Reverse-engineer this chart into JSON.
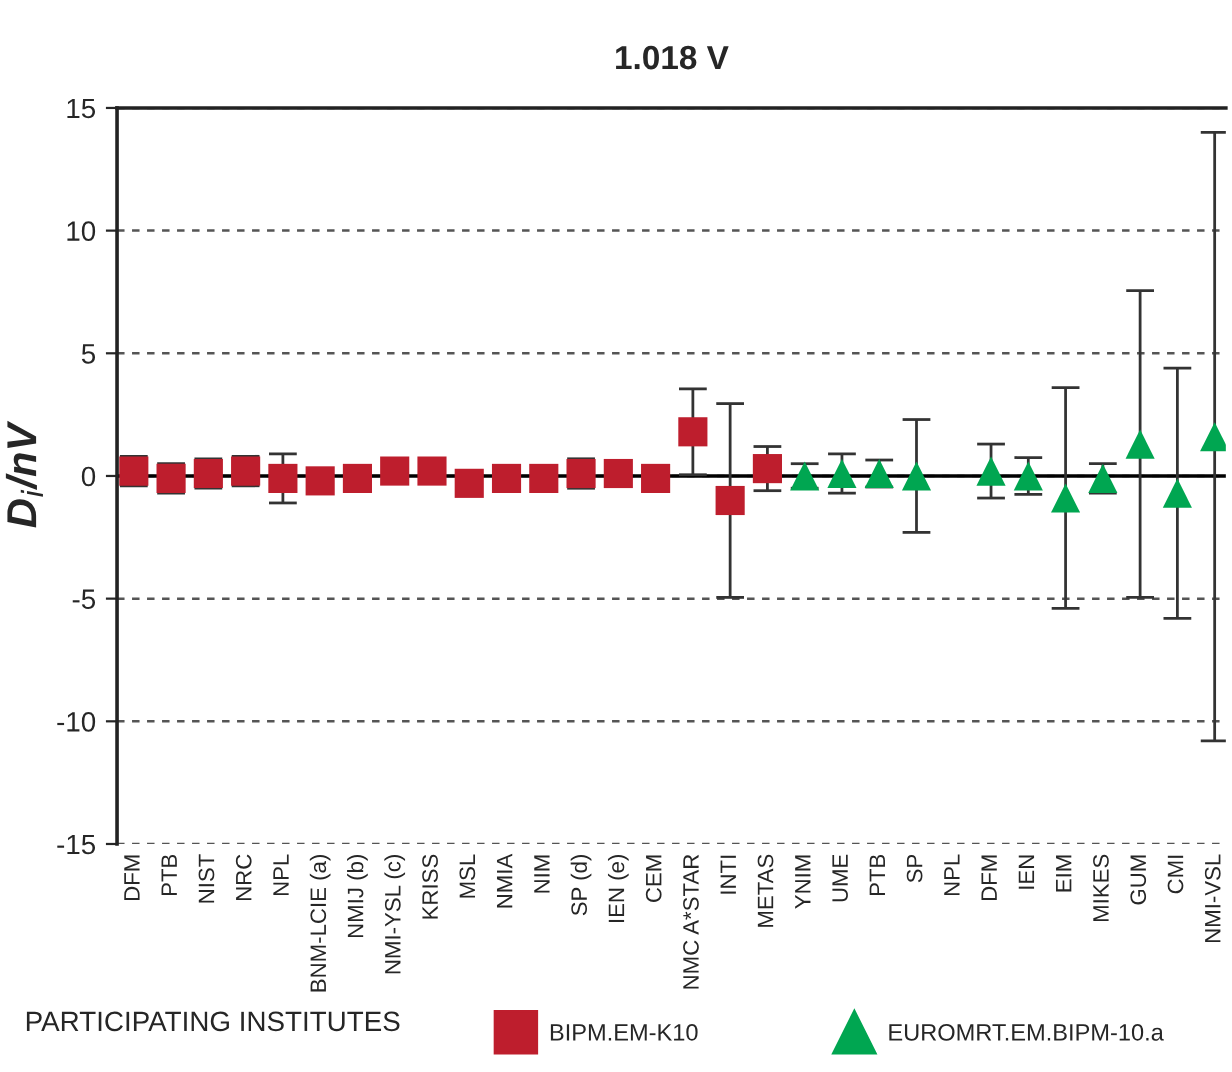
{
  "chart_data": {
    "type": "scatter",
    "title": "1.018 V",
    "ylabel": "D$_{i}$/nV",
    "legend_title": "PARTICIPATING INSTITUTES",
    "categories": [
      "DFM",
      "PTB",
      "NIST",
      "NRC",
      "NPL",
      "BNM-LCIE (a)",
      "NMIJ (b)",
      "NMI-YSL (c)",
      "KRISS",
      "MSL",
      "NMIA",
      "NIM",
      "SP (d)",
      "IEN (e)",
      "CEM",
      "NMC A*STAR",
      "INTI",
      "METAS",
      "YNIM",
      "UME",
      "PTB",
      "SP",
      "NPL",
      "DFM",
      "IEN",
      "EIM",
      "MIKES",
      "GUM",
      "CMI",
      "NMI-VSL"
    ],
    "series": [
      {
        "name": "BIPM.EM-K10",
        "color": "#be1e2d",
        "marker": "square",
        "values": [
          0.2,
          -0.1,
          0.1,
          0.2,
          -0.1,
          -0.2,
          -0.1,
          0.2,
          0.2,
          -0.3,
          -0.1,
          -0.1,
          0.1,
          0.1,
          -0.1,
          1.8,
          -1.0,
          0.3,
          null,
          null,
          null,
          null,
          null,
          null,
          null,
          null,
          null,
          null,
          null,
          null
        ],
        "errors": [
          0.6,
          0.6,
          0.6,
          0.6,
          1.0,
          null,
          null,
          null,
          null,
          null,
          null,
          null,
          0.6,
          null,
          null,
          1.75,
          3.95,
          0.9,
          null,
          null,
          null,
          null,
          null,
          null,
          null,
          null,
          null,
          null,
          null,
          null
        ]
      },
      {
        "name": "EUROMRT.EM.BIPM-10.a",
        "color": "#00a651",
        "marker": "triangle",
        "values": [
          null,
          null,
          null,
          null,
          null,
          null,
          null,
          null,
          null,
          null,
          null,
          null,
          null,
          null,
          null,
          null,
          null,
          null,
          0.0,
          0.1,
          0.1,
          0.0,
          null,
          0.2,
          0.0,
          -0.9,
          -0.1,
          1.3,
          -0.7,
          1.6
        ],
        "errors": [
          null,
          null,
          null,
          null,
          null,
          null,
          null,
          null,
          null,
          null,
          null,
          null,
          null,
          null,
          null,
          null,
          null,
          null,
          0.5,
          0.8,
          0.55,
          2.3,
          null,
          1.1,
          0.75,
          4.5,
          0.6,
          6.25,
          5.1,
          12.4
        ]
      }
    ],
    "ylim": [
      -15,
      15
    ],
    "yticks": [
      {
        "value": -15,
        "label": "-15"
      },
      {
        "value": -10,
        "label": "-10"
      },
      {
        "value": -5,
        "label": "-5"
      },
      0,
      5,
      10,
      15
    ],
    "grid": "y",
    "line_style": "dashed",
    "ref_lines": [
      {
        "axis": "y",
        "value": 0,
        "color": "#000000",
        "line_style": "solid"
      }
    ],
    "legend": "bottom"
  }
}
